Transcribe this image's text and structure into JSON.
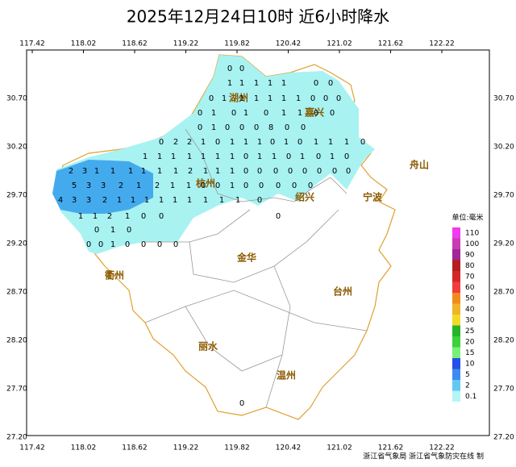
{
  "title": "2025年12月24日10时  近6小时降水",
  "lon_labels": [
    "117.42",
    "118.02",
    "118.62",
    "119.22",
    "119.82",
    "120.42",
    "121.02",
    "121.62",
    "122.22"
  ],
  "lat_labels": [
    "30.70",
    "30.20",
    "29.70",
    "29.20",
    "28.70",
    "28.20",
    "27.70",
    "27.20"
  ],
  "cities": [
    "湖州",
    "嘉兴",
    "杭州",
    "绍兴",
    "宁波",
    "舟山",
    "衢州",
    "金华",
    "台州",
    "丽水",
    "温州"
  ],
  "legend": {
    "unit": "单位:毫米",
    "items": [
      {
        "label": "110",
        "color": "#f03cf0"
      },
      {
        "label": "100",
        "color": "#c83cb4"
      },
      {
        "label": "90",
        "color": "#a02896"
      },
      {
        "label": "80",
        "color": "#b41e1e"
      },
      {
        "label": "70",
        "color": "#d22828"
      },
      {
        "label": "60",
        "color": "#f03c3c"
      },
      {
        "label": "50",
        "color": "#f08c1e"
      },
      {
        "label": "40",
        "color": "#f0b428"
      },
      {
        "label": "30",
        "color": "#f0dc28"
      },
      {
        "label": "25",
        "color": "#28b428"
      },
      {
        "label": "20",
        "color": "#3cd23c"
      },
      {
        "label": "15",
        "color": "#78f078"
      },
      {
        "label": "10",
        "color": "#2850e6"
      },
      {
        "label": "5",
        "color": "#3c8cf0"
      },
      {
        "label": "2",
        "color": "#64c8f0"
      },
      {
        "label": "0.1",
        "color": "#b4f5f5"
      }
    ]
  },
  "stations": [
    0,
    0,
    1,
    1,
    1,
    1,
    1,
    0,
    0,
    0,
    1,
    1,
    1,
    1,
    1,
    1,
    0,
    0,
    0,
    0,
    1,
    0,
    1,
    0,
    1,
    1,
    0,
    0,
    0,
    1,
    0,
    0,
    0,
    8,
    0,
    0,
    0,
    2,
    2,
    1,
    0,
    1,
    1,
    1,
    0,
    1,
    0,
    1,
    1,
    1,
    0,
    1,
    1,
    1,
    1,
    1,
    1,
    1,
    0,
    1,
    1,
    0,
    1,
    0,
    1,
    0,
    2,
    3,
    1,
    1,
    1,
    1,
    1,
    1,
    2,
    1,
    1,
    1,
    0,
    0,
    0,
    0,
    0,
    0,
    0,
    0,
    5,
    3,
    3,
    2,
    1,
    2,
    1,
    1,
    0,
    0,
    1,
    0,
    0,
    0,
    0,
    0,
    4,
    3,
    3,
    2,
    1,
    1,
    1,
    1,
    1,
    1,
    1,
    1,
    1,
    0,
    1,
    1,
    2,
    1,
    0,
    0,
    0,
    0,
    1,
    0,
    0,
    0,
    1,
    0,
    0,
    0,
    0,
    0
  ],
  "footer": "浙江省气象局  浙江省气象防灾在线 制"
}
